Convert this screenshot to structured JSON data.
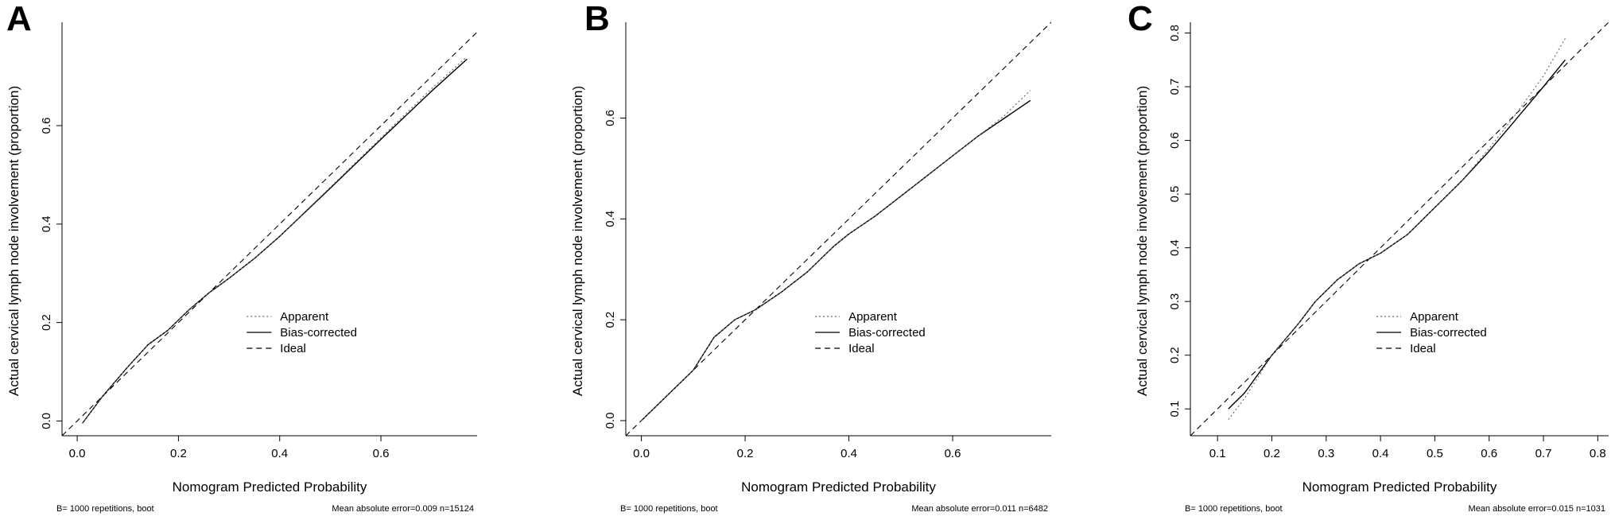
{
  "chart_data": [
    {
      "type": "line",
      "panel_label": "A",
      "xlabel": "Nomogram Predicted Probability",
      "ylabel": "Actual cervical lymph node involvement (proportion)",
      "xlim": [
        -0.03,
        0.79
      ],
      "ylim": [
        -0.03,
        0.81
      ],
      "x_ticks": [
        0.0,
        0.2,
        0.4,
        0.6
      ],
      "x_tick_labels": [
        "0.0",
        "0.2",
        "0.4",
        "0.6"
      ],
      "y_ticks": [
        0.0,
        0.2,
        0.4,
        0.6
      ],
      "y_tick_labels": [
        "0.0",
        "0.2",
        "0.4",
        "0.6"
      ],
      "series": [
        {
          "name": "Apparent",
          "style": "dotted",
          "x": [
            0.01,
            0.05,
            0.1,
            0.14,
            0.18,
            0.22,
            0.26,
            0.3,
            0.35,
            0.4,
            0.5,
            0.6,
            0.7,
            0.77
          ],
          "y": [
            -0.005,
            0.05,
            0.11,
            0.155,
            0.185,
            0.225,
            0.26,
            0.29,
            0.33,
            0.375,
            0.475,
            0.575,
            0.675,
            0.74
          ]
        },
        {
          "name": "Bias-corrected",
          "style": "solid",
          "x": [
            0.01,
            0.05,
            0.1,
            0.14,
            0.18,
            0.22,
            0.26,
            0.3,
            0.35,
            0.4,
            0.5,
            0.6,
            0.7,
            0.77
          ],
          "y": [
            -0.005,
            0.05,
            0.11,
            0.155,
            0.185,
            0.225,
            0.26,
            0.29,
            0.33,
            0.375,
            0.473,
            0.572,
            0.67,
            0.735
          ]
        },
        {
          "name": "Ideal",
          "style": "dashed",
          "x": [
            -0.03,
            0.79
          ],
          "y": [
            -0.03,
            0.79
          ]
        }
      ],
      "footer_left": "B= 1000 repetitions, boot",
      "footer_right": "Mean absolute error=0.009 n=15124"
    },
    {
      "type": "line",
      "panel_label": "B",
      "xlabel": "Nomogram Predicted Probability",
      "ylabel": "Actual cervical lymph node involvement (proportion)",
      "xlim": [
        -0.03,
        0.79
      ],
      "ylim": [
        -0.03,
        0.79
      ],
      "x_ticks": [
        0.0,
        0.2,
        0.4,
        0.6
      ],
      "x_tick_labels": [
        "0.0",
        "0.2",
        "0.4",
        "0.6"
      ],
      "y_ticks": [
        0.0,
        0.2,
        0.4,
        0.6
      ],
      "y_tick_labels": [
        "0.0",
        "0.2",
        "0.4",
        "0.6"
      ],
      "series": [
        {
          "name": "Apparent",
          "style": "dotted",
          "x": [
            0.0,
            0.05,
            0.1,
            0.14,
            0.18,
            0.22,
            0.27,
            0.32,
            0.37,
            0.4,
            0.45,
            0.5,
            0.55,
            0.6,
            0.65,
            0.7,
            0.75
          ],
          "y": [
            0.0,
            0.05,
            0.1,
            0.165,
            0.2,
            0.22,
            0.255,
            0.295,
            0.345,
            0.37,
            0.405,
            0.445,
            0.485,
            0.525,
            0.565,
            0.605,
            0.655
          ]
        },
        {
          "name": "Bias-corrected",
          "style": "solid",
          "x": [
            0.0,
            0.05,
            0.1,
            0.14,
            0.18,
            0.22,
            0.27,
            0.32,
            0.37,
            0.4,
            0.45,
            0.5,
            0.55,
            0.6,
            0.65,
            0.7,
            0.75
          ],
          "y": [
            0.0,
            0.05,
            0.1,
            0.165,
            0.2,
            0.22,
            0.255,
            0.295,
            0.345,
            0.37,
            0.405,
            0.445,
            0.485,
            0.525,
            0.565,
            0.6,
            0.635
          ]
        },
        {
          "name": "Ideal",
          "style": "dashed",
          "x": [
            -0.03,
            0.79
          ],
          "y": [
            -0.03,
            0.79
          ]
        }
      ],
      "footer_left": "B= 1000 repetitions, boot",
      "footer_right": "Mean absolute error=0.011 n=6482"
    },
    {
      "type": "line",
      "panel_label": "C",
      "xlabel": "Nomogram Predicted Probability",
      "ylabel": "Actual cervical lymph node involvement (proportion)",
      "xlim": [
        0.05,
        0.82
      ],
      "ylim": [
        0.05,
        0.82
      ],
      "x_ticks": [
        0.1,
        0.2,
        0.3,
        0.4,
        0.5,
        0.6,
        0.7,
        0.8
      ],
      "x_tick_labels": [
        "0.1",
        "0.2",
        "0.3",
        "0.4",
        "0.5",
        "0.6",
        "0.7",
        "0.8"
      ],
      "y_ticks": [
        0.1,
        0.2,
        0.3,
        0.4,
        0.5,
        0.6,
        0.7,
        0.8
      ],
      "y_tick_labels": [
        "0.1",
        "0.2",
        "0.3",
        "0.4",
        "0.5",
        "0.6",
        "0.7",
        "0.8"
      ],
      "series": [
        {
          "name": "Apparent",
          "style": "dotted",
          "x": [
            0.12,
            0.15,
            0.2,
            0.25,
            0.28,
            0.32,
            0.36,
            0.4,
            0.45,
            0.5,
            0.55,
            0.6,
            0.65,
            0.7,
            0.74
          ],
          "y": [
            0.08,
            0.12,
            0.2,
            0.26,
            0.3,
            0.34,
            0.37,
            0.39,
            0.425,
            0.475,
            0.525,
            0.585,
            0.65,
            0.72,
            0.79
          ]
        },
        {
          "name": "Bias-corrected",
          "style": "solid",
          "x": [
            0.12,
            0.15,
            0.2,
            0.25,
            0.28,
            0.32,
            0.36,
            0.4,
            0.45,
            0.5,
            0.55,
            0.6,
            0.65,
            0.7,
            0.74
          ],
          "y": [
            0.1,
            0.13,
            0.2,
            0.26,
            0.3,
            0.34,
            0.37,
            0.39,
            0.425,
            0.475,
            0.525,
            0.58,
            0.64,
            0.7,
            0.75
          ]
        },
        {
          "name": "Ideal",
          "style": "dashed",
          "x": [
            0.05,
            0.82
          ],
          "y": [
            0.05,
            0.82
          ]
        }
      ],
      "footer_left": "B= 1000 repetitions, boot",
      "footer_right": "Mean absolute error=0.015 n=1031"
    }
  ]
}
